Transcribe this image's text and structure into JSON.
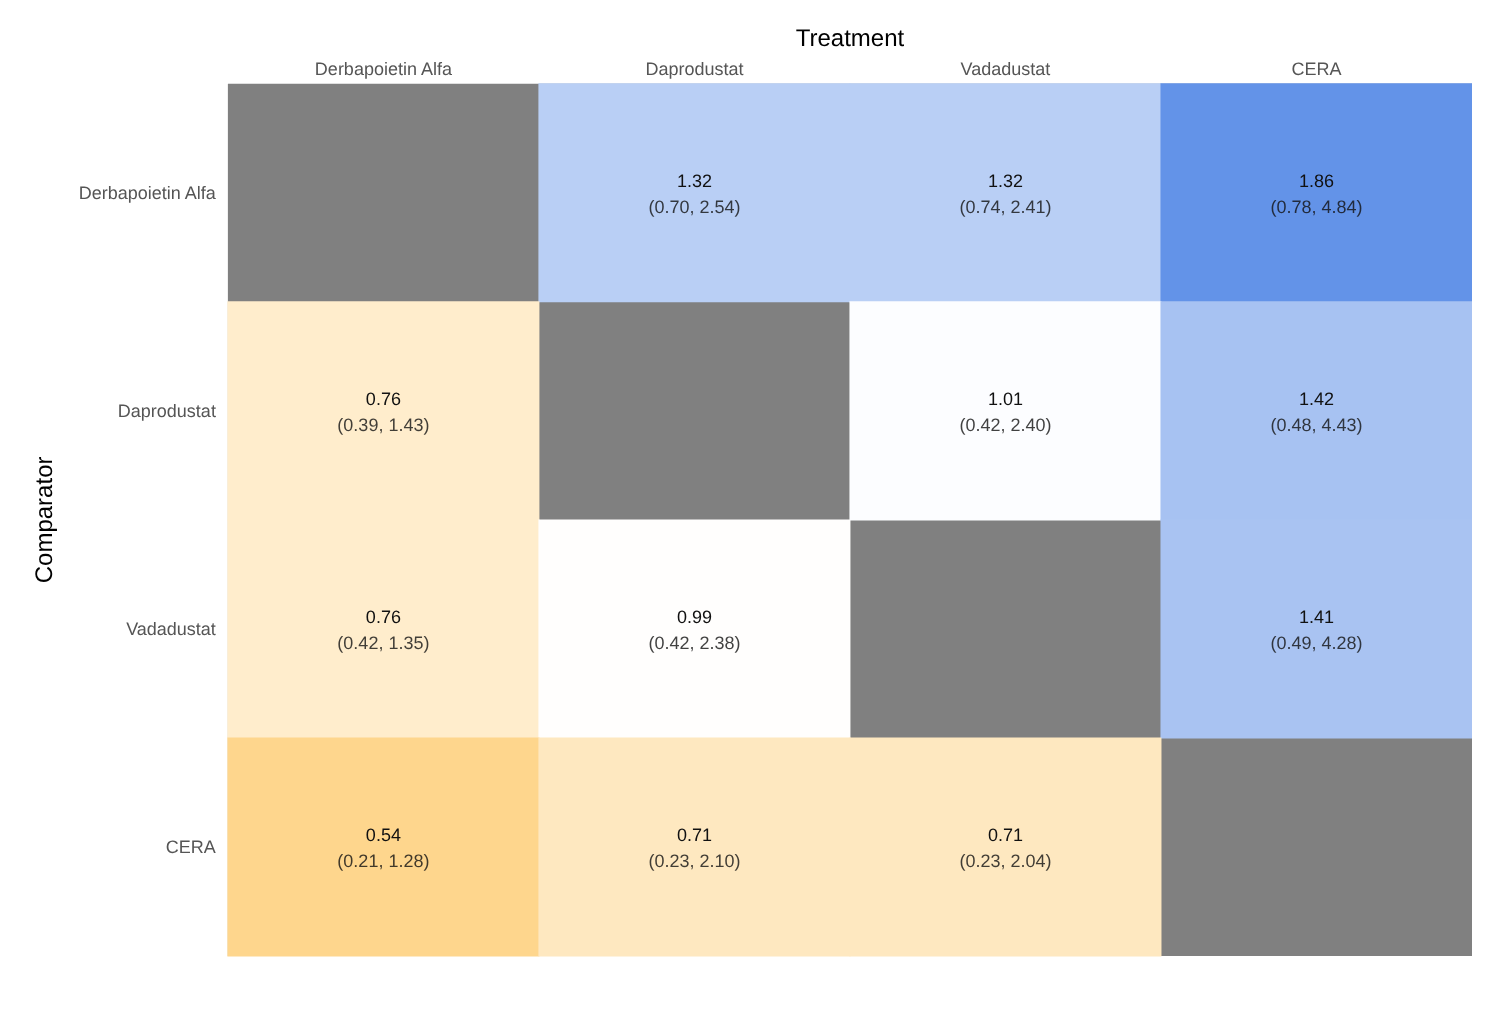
{
  "chart_data": {
    "type": "heatmap",
    "xlabel": "Treatment",
    "ylabel": "Comparator",
    "data_labels": true,
    "categories": [
      "Derbapoietin Alfa",
      "Daprodustat",
      "Vadadustat",
      "CERA"
    ],
    "y_categories": [
      "Derbapoietin Alfa",
      "Daprodustat",
      "Vadadustat",
      "CERA"
    ],
    "cells": [
      [
        null,
        1.32,
        1.32,
        1.86
      ],
      [
        0.76,
        null,
        1.01,
        1.42
      ],
      [
        0.76,
        0.99,
        null,
        1.41
      ],
      [
        0.54,
        0.71,
        0.71,
        null
      ]
    ],
    "annotations": [
      "(0.70, 2.54)",
      "(0.74, 2.41)",
      "(0.78, 4.84)",
      "(0.39, 1.43)",
      "(0.42, 2.40)",
      "(0.48, 4.43)",
      "(0.42, 1.35)",
      "(0.42, 2.38)",
      "(0.49, 4.28)",
      "(0.21, 1.28)",
      "(0.23, 2.10)",
      "(0.23, 2.04)"
    ]
  }
}
